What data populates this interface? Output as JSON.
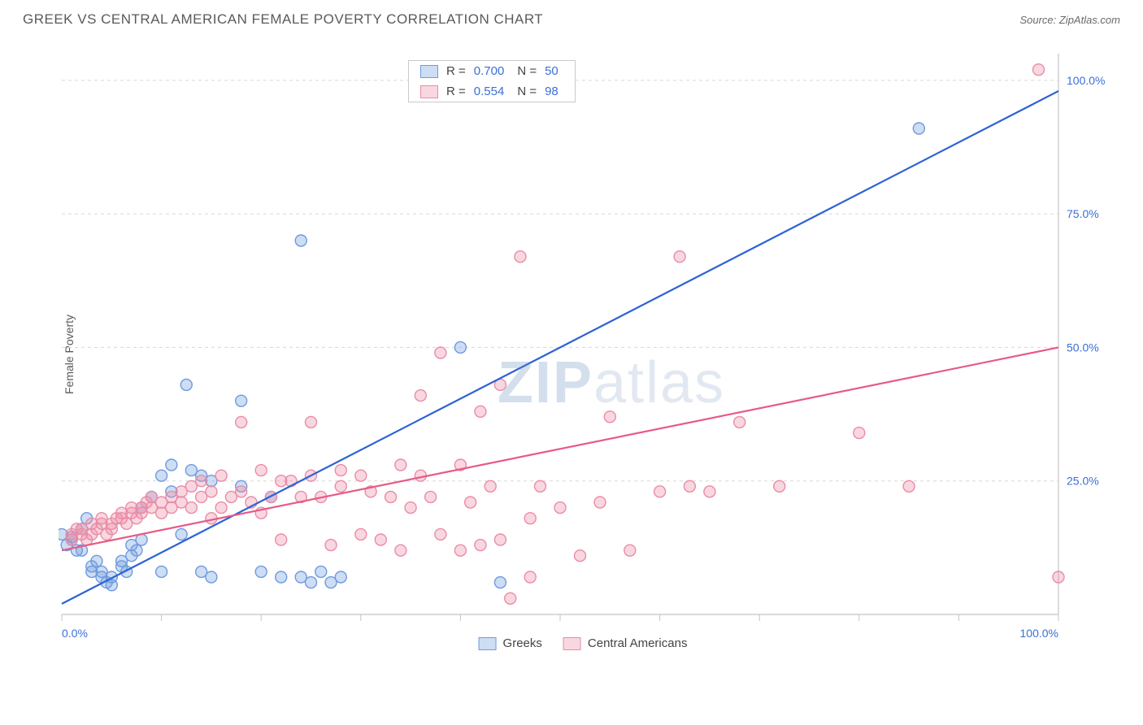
{
  "header": {
    "title": "GREEK VS CENTRAL AMERICAN FEMALE POVERTY CORRELATION CHART",
    "source_prefix": "Source: ",
    "source_name": "ZipAtlas.com"
  },
  "watermark": {
    "zip": "ZIP",
    "atlas": "atlas"
  },
  "chart": {
    "type": "scatter",
    "ylabel": "Female Poverty",
    "xlim": [
      0,
      100
    ],
    "ylim": [
      0,
      105
    ],
    "x_ticks": [
      0,
      10,
      20,
      30,
      40,
      50,
      60,
      70,
      80,
      90,
      100
    ],
    "y_grid": [
      0,
      25,
      50,
      75,
      100
    ],
    "x_axis_labels": [
      {
        "v": 0,
        "label": "0.0%"
      },
      {
        "v": 100,
        "label": "100.0%"
      }
    ],
    "y_axis_labels": [
      {
        "v": 25,
        "label": "25.0%"
      },
      {
        "v": 50,
        "label": "50.0%"
      },
      {
        "v": 75,
        "label": "75.0%"
      },
      {
        "v": 100,
        "label": "100.0%"
      }
    ],
    "grid_color": "#d8d8d8",
    "axis_color": "#c4c4c4",
    "background_color": "#ffffff",
    "marker_radius": 7,
    "marker_stroke_width": 1.4,
    "line_width": 2.2,
    "series": [
      {
        "name": "Greeks",
        "fill": "rgba(112,158,222,0.35)",
        "stroke": "#6f9ae0",
        "line_color": "#2d62d4",
        "R": "0.700",
        "N": "50",
        "regression": {
          "x1": 0,
          "y1": 2,
          "x2": 100,
          "y2": 98
        },
        "points": [
          [
            0,
            15
          ],
          [
            0.5,
            13
          ],
          [
            1,
            14
          ],
          [
            1,
            14.5
          ],
          [
            1.5,
            12
          ],
          [
            2,
            12
          ],
          [
            2,
            16
          ],
          [
            2.5,
            18
          ],
          [
            3,
            8
          ],
          [
            3,
            9
          ],
          [
            3.5,
            10
          ],
          [
            4,
            7
          ],
          [
            4,
            8
          ],
          [
            4.5,
            6
          ],
          [
            5,
            7
          ],
          [
            5,
            5.5
          ],
          [
            6,
            9
          ],
          [
            6,
            10
          ],
          [
            6.5,
            8
          ],
          [
            7,
            11
          ],
          [
            7,
            13
          ],
          [
            7.5,
            12
          ],
          [
            8,
            14
          ],
          [
            8,
            20
          ],
          [
            9,
            22
          ],
          [
            10,
            8
          ],
          [
            10,
            26
          ],
          [
            11,
            23
          ],
          [
            11,
            28
          ],
          [
            12,
            15
          ],
          [
            12.5,
            43
          ],
          [
            13,
            27
          ],
          [
            14,
            8
          ],
          [
            14,
            26
          ],
          [
            15,
            7
          ],
          [
            15,
            25
          ],
          [
            18,
            24
          ],
          [
            18,
            40
          ],
          [
            20,
            8
          ],
          [
            21,
            22
          ],
          [
            22,
            7
          ],
          [
            24,
            7
          ],
          [
            24,
            70
          ],
          [
            25,
            6
          ],
          [
            26,
            8
          ],
          [
            27,
            6
          ],
          [
            28,
            7
          ],
          [
            40,
            50
          ],
          [
            44,
            6
          ],
          [
            86,
            91
          ]
        ]
      },
      {
        "name": "Central Americans",
        "fill": "rgba(238,140,165,0.35)",
        "stroke": "#ea8ca6",
        "line_color": "#e75a86",
        "R": "0.554",
        "N": "98",
        "regression": {
          "x1": 0,
          "y1": 12,
          "x2": 100,
          "y2": 50
        },
        "points": [
          [
            1,
            14
          ],
          [
            1,
            15
          ],
          [
            1.5,
            16
          ],
          [
            2,
            15
          ],
          [
            2,
            16
          ],
          [
            2.5,
            14
          ],
          [
            3,
            15
          ],
          [
            3,
            17
          ],
          [
            3.5,
            16
          ],
          [
            4,
            17
          ],
          [
            4,
            18
          ],
          [
            4.5,
            15
          ],
          [
            5,
            16
          ],
          [
            5,
            17
          ],
          [
            5.5,
            18
          ],
          [
            6,
            19
          ],
          [
            6,
            18
          ],
          [
            6.5,
            17
          ],
          [
            7,
            19
          ],
          [
            7,
            20
          ],
          [
            7.5,
            18
          ],
          [
            8,
            19
          ],
          [
            8,
            20
          ],
          [
            8.5,
            21
          ],
          [
            9,
            20
          ],
          [
            9,
            22
          ],
          [
            10,
            21
          ],
          [
            10,
            19
          ],
          [
            11,
            22
          ],
          [
            11,
            20
          ],
          [
            12,
            23
          ],
          [
            12,
            21
          ],
          [
            13,
            24
          ],
          [
            13,
            20
          ],
          [
            14,
            22
          ],
          [
            14,
            25
          ],
          [
            15,
            23
          ],
          [
            15,
            18
          ],
          [
            16,
            26
          ],
          [
            16,
            20
          ],
          [
            17,
            22
          ],
          [
            18,
            36
          ],
          [
            18,
            23
          ],
          [
            19,
            21
          ],
          [
            20,
            27
          ],
          [
            20,
            19
          ],
          [
            21,
            22
          ],
          [
            22,
            25
          ],
          [
            22,
            14
          ],
          [
            23,
            25
          ],
          [
            24,
            22
          ],
          [
            25,
            36
          ],
          [
            25,
            26
          ],
          [
            26,
            22
          ],
          [
            27,
            13
          ],
          [
            28,
            24
          ],
          [
            28,
            27
          ],
          [
            30,
            26
          ],
          [
            30,
            15
          ],
          [
            31,
            23
          ],
          [
            32,
            14
          ],
          [
            33,
            22
          ],
          [
            34,
            28
          ],
          [
            34,
            12
          ],
          [
            35,
            20
          ],
          [
            36,
            41
          ],
          [
            36,
            26
          ],
          [
            37,
            22
          ],
          [
            38,
            49
          ],
          [
            38,
            15
          ],
          [
            40,
            28
          ],
          [
            40,
            12
          ],
          [
            41,
            21
          ],
          [
            42,
            38
          ],
          [
            42,
            13
          ],
          [
            43,
            24
          ],
          [
            44,
            43
          ],
          [
            44,
            14
          ],
          [
            45,
            3
          ],
          [
            46,
            67
          ],
          [
            47,
            18
          ],
          [
            47,
            7
          ],
          [
            48,
            24
          ],
          [
            50,
            20
          ],
          [
            52,
            11
          ],
          [
            54,
            21
          ],
          [
            55,
            37
          ],
          [
            57,
            12
          ],
          [
            60,
            23
          ],
          [
            62,
            67
          ],
          [
            63,
            24
          ],
          [
            65,
            23
          ],
          [
            68,
            36
          ],
          [
            72,
            24
          ],
          [
            80,
            34
          ],
          [
            85,
            24
          ],
          [
            98,
            102
          ],
          [
            100,
            7
          ]
        ]
      }
    ]
  },
  "legend_top": {
    "r_label": "R =",
    "n_label": "N ="
  },
  "legend_bottom": {
    "items": [
      {
        "label": "Greeks"
      },
      {
        "label": "Central Americans"
      }
    ]
  }
}
